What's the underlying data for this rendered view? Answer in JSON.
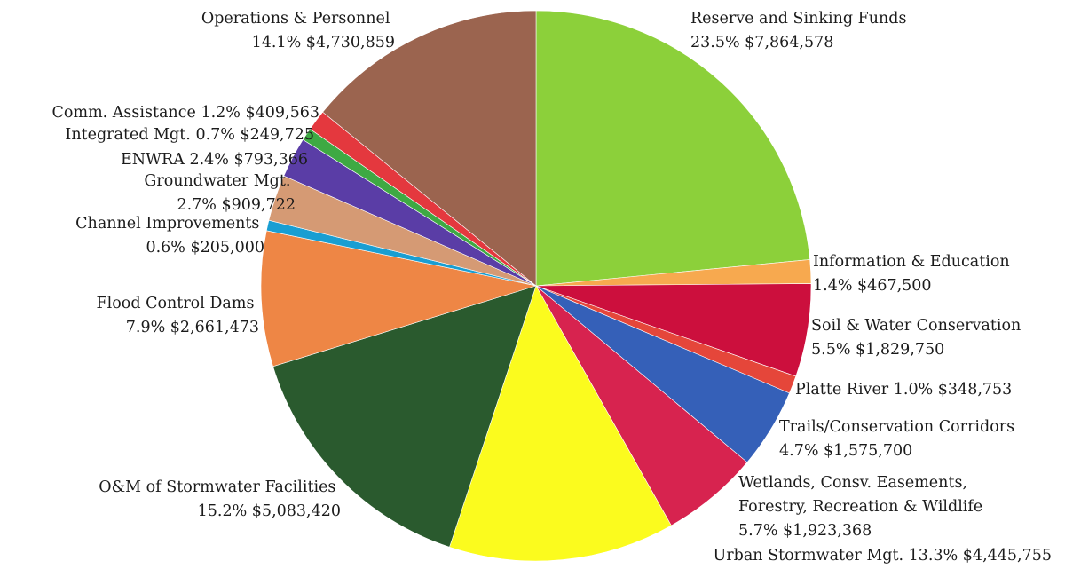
{
  "chart_data": {
    "type": "pie",
    "title": "",
    "start_angle_deg": 0,
    "direction": "clockwise",
    "legend": "none",
    "slices": [
      {
        "label": "Reserve and Sinking Funds",
        "percent_label": "23.5%",
        "amount_label": "$7,864,578",
        "value": 7864578,
        "color": "#8cd03a"
      },
      {
        "label": "Information & Education",
        "percent_label": "1.4%",
        "amount_label": "$467,500",
        "value": 467500,
        "color": "#f7a94f"
      },
      {
        "label": "Soil & Water Conservation",
        "percent_label": "5.5%",
        "amount_label": "$1,829,750",
        "value": 1829750,
        "color": "#cc0f3d"
      },
      {
        "label": "Platte River",
        "percent_label": "1.0%",
        "amount_label": "$348,753",
        "value": 348753,
        "color": "#e5463a"
      },
      {
        "label": "Trails/Conservation Corridors",
        "percent_label": "4.7%",
        "amount_label": "$1,575,700",
        "value": 1575700,
        "color": "#3560b8"
      },
      {
        "label": "Wetlands, Consv. Easements, Forestry, Recreation & Wildlife",
        "percent_label": "5.7%",
        "amount_label": "$1,923,368",
        "value": 1923368,
        "color": "#d7234f"
      },
      {
        "label": "Urban Stormwater Mgt.",
        "percent_label": "13.3%",
        "amount_label": "$4,445,755",
        "value": 4445755,
        "color": "#fbfb1e"
      },
      {
        "label": "O&M of Stormwater Facilities",
        "percent_label": "15.2%",
        "amount_label": "$5,083,420",
        "value": 5083420,
        "color": "#2a5a2e"
      },
      {
        "label": "Flood Control Dams",
        "percent_label": "7.9%",
        "amount_label": "$2,661,473",
        "value": 2661473,
        "color": "#ee8645"
      },
      {
        "label": "Channel Improvements",
        "percent_label": "0.6%",
        "amount_label": "$205,000",
        "value": 205000,
        "color": "#199ed2"
      },
      {
        "label": "Groundwater Mgt.",
        "percent_label": "2.7%",
        "amount_label": "$909,722",
        "value": 909722,
        "color": "#d59a74"
      },
      {
        "label": "ENWRA",
        "percent_label": "2.4%",
        "amount_label": "$793,366",
        "value": 793366,
        "color": "#5a3da6"
      },
      {
        "label": "Integrated Mgt.",
        "percent_label": "0.7%",
        "amount_label": "$249,725",
        "value": 249725,
        "color": "#3ea943"
      },
      {
        "label": "Comm. Assistance",
        "percent_label": "1.2%",
        "amount_label": "$409,563",
        "value": 409563,
        "color": "#e4383e"
      },
      {
        "label": "Operations & Personnel",
        "percent_label": "14.1%",
        "amount_label": "$4,730,859",
        "value": 4730859,
        "color": "#9b644f"
      }
    ]
  }
}
